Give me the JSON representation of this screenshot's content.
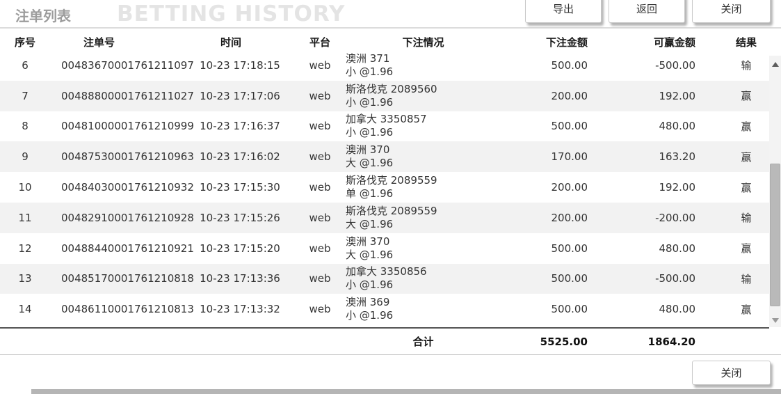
{
  "header": {
    "title": "注单列表",
    "watermark": "BETTING HISTORY",
    "buttons": {
      "export": "导出",
      "back": "返回",
      "close": "关闭"
    }
  },
  "table": {
    "columns": [
      "序号",
      "注单号",
      "时间",
      "平台",
      "下注情况",
      "下注金额",
      "可赢金额",
      "结果"
    ],
    "rows": [
      {
        "seq": "6",
        "bet_no": "00483670001761211097",
        "time": "10-23 17:18:15",
        "platform": "web",
        "match": "澳洲 371",
        "selection": "小 @1.96",
        "amount": "500.00",
        "payout": "-500.00",
        "result": "输"
      },
      {
        "seq": "7",
        "bet_no": "00488800001761211027",
        "time": "10-23 17:17:06",
        "platform": "web",
        "match": "斯洛伐克 2089560",
        "selection": "小 @1.96",
        "amount": "200.00",
        "payout": "192.00",
        "result": "赢"
      },
      {
        "seq": "8",
        "bet_no": "00481000001761210999",
        "time": "10-23 17:16:37",
        "platform": "web",
        "match": "加拿大 3350857",
        "selection": "小 @1.96",
        "amount": "500.00",
        "payout": "480.00",
        "result": "赢"
      },
      {
        "seq": "9",
        "bet_no": "00487530001761210963",
        "time": "10-23 17:16:02",
        "platform": "web",
        "match": "澳洲 370",
        "selection": "大 @1.96",
        "amount": "170.00",
        "payout": "163.20",
        "result": "赢"
      },
      {
        "seq": "10",
        "bet_no": "00484030001761210932",
        "time": "10-23 17:15:30",
        "platform": "web",
        "match": "斯洛伐克 2089559",
        "selection": "单 @1.96",
        "amount": "200.00",
        "payout": "192.00",
        "result": "赢"
      },
      {
        "seq": "11",
        "bet_no": "00482910001761210928",
        "time": "10-23 17:15:26",
        "platform": "web",
        "match": "斯洛伐克 2089559",
        "selection": "大 @1.96",
        "amount": "200.00",
        "payout": "-200.00",
        "result": "输"
      },
      {
        "seq": "12",
        "bet_no": "00488440001761210921",
        "time": "10-23 17:15:20",
        "platform": "web",
        "match": "澳洲 370",
        "selection": "大 @1.96",
        "amount": "500.00",
        "payout": "480.00",
        "result": "赢"
      },
      {
        "seq": "13",
        "bet_no": "00485170001761210818",
        "time": "10-23 17:13:36",
        "platform": "web",
        "match": "加拿大 3350856",
        "selection": "小 @1.96",
        "amount": "500.00",
        "payout": "-500.00",
        "result": "输"
      },
      {
        "seq": "14",
        "bet_no": "00486110001761210813",
        "time": "10-23 17:13:32",
        "platform": "web",
        "match": "澳洲 369",
        "selection": "小 @1.96",
        "amount": "500.00",
        "payout": "480.00",
        "result": "赢"
      }
    ],
    "total": {
      "label": "合计",
      "amount": "5525.00",
      "payout": "1864.20"
    }
  },
  "footer": {
    "close": "关闭"
  },
  "colors": {
    "title_gray": "#9c9c9c",
    "watermark_gray": "#e4e4e4",
    "row_stripe": "#f2f2f2",
    "total_border": "#555555",
    "bottom_edge": "#b5b5b5"
  }
}
